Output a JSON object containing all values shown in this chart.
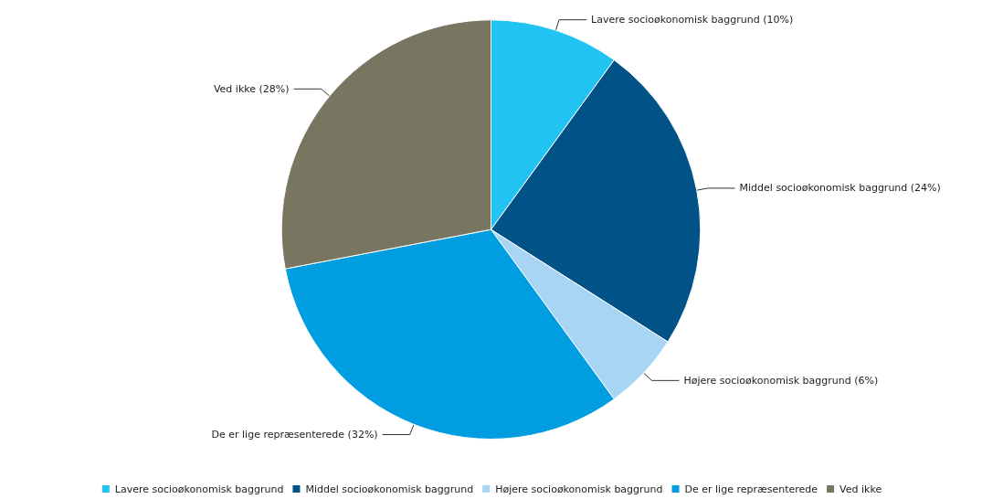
{
  "chart_data": {
    "type": "pie",
    "categories": [
      "Lavere socioøkonomisk baggrund",
      "Middel socioøkonomisk baggrund",
      "Højere socioøkonomisk baggrund",
      "De er lige repræsenterede",
      "Ved ikke"
    ],
    "values": [
      10,
      24,
      6,
      32,
      28
    ],
    "value_labels": [
      "(10%)",
      "(24%)",
      "(6%)",
      "(32%)",
      "(28%)"
    ],
    "colors": [
      "#21c3f3",
      "#005287",
      "#a9d5f5",
      "#009ee0",
      "#787561"
    ],
    "legend": "bottom"
  }
}
